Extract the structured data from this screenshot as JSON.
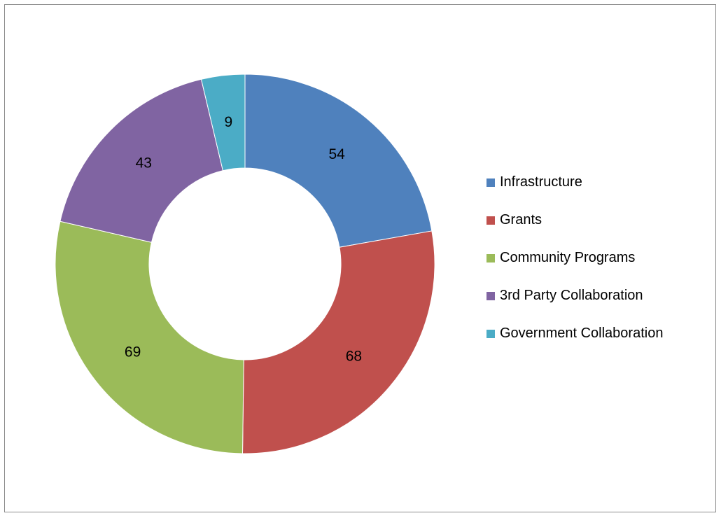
{
  "chart_data": {
    "type": "pie",
    "style": "donut",
    "categories": [
      "Infrastructure",
      "Grants",
      "Community Programs",
      "3rd Party Collaboration",
      "Government Collaboration"
    ],
    "values": [
      54,
      68,
      69,
      43,
      9
    ],
    "data_labels": [
      "54",
      "68",
      "69",
      "43",
      "9"
    ],
    "colors": [
      "#4f81bd",
      "#c0504d",
      "#9bbb59",
      "#8064a2",
      "#4bacc6"
    ],
    "title": "",
    "legend_position": "right"
  }
}
